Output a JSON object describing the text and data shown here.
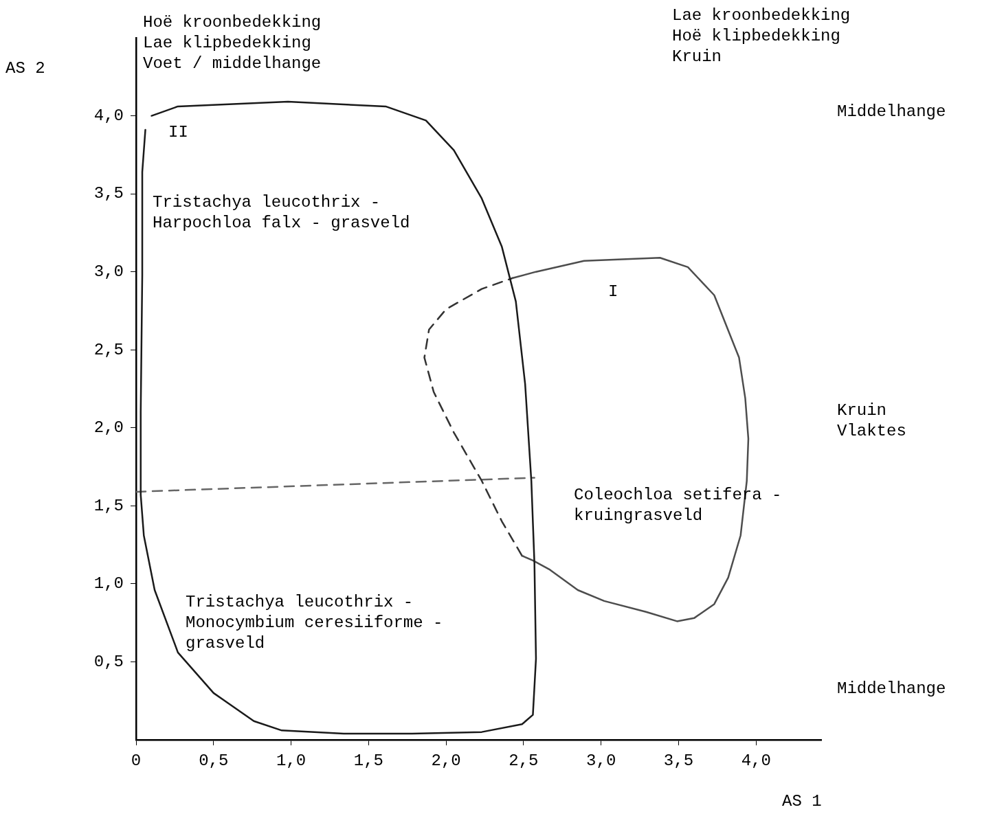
{
  "chart_data": {
    "type": "line",
    "xlabel": "AS 1",
    "ylabel": "AS 2",
    "xlim": [
      0,
      4.42
    ],
    "ylim": [
      0,
      4.5
    ],
    "xticks": [
      0,
      {
        "value": 0.5,
        "label": "0,5"
      },
      {
        "value": 1,
        "label": "1,0"
      },
      {
        "value": 1.5,
        "label": "1,5"
      },
      {
        "value": 2,
        "label": "2,0"
      },
      {
        "value": 2.5,
        "label": "2,5"
      },
      {
        "value": 3,
        "label": "3,0"
      },
      {
        "value": 3.5,
        "label": "3,5"
      },
      {
        "value": 4,
        "label": "4,0"
      }
    ],
    "yticks": [
      {
        "value": 0.5,
        "label": "0,5"
      },
      {
        "value": 1,
        "label": "1,0"
      },
      {
        "value": 1.5,
        "label": "1,5"
      },
      {
        "value": 2,
        "label": "2,0"
      },
      {
        "value": 2.5,
        "label": "2,5"
      },
      {
        "value": 3,
        "label": "3,0"
      },
      {
        "value": 3.5,
        "label": "3,5"
      },
      {
        "value": 4,
        "label": "4,0"
      }
    ],
    "grid": false,
    "legend": false,
    "marker": "none",
    "series": [
      {
        "color": "#1a1a1a",
        "line_style": "solid",
        "x": [
          0.1,
          0.27,
          0.98,
          1.61,
          1.87,
          2.05,
          2.23,
          2.36,
          2.45,
          2.51,
          2.55,
          2.57,
          2.58,
          2.56,
          2.49,
          2.23,
          1.78,
          1.34,
          0.94,
          0.76,
          0.5,
          0.27,
          0.12,
          0.05,
          0.03,
          0.03,
          0.04,
          0.04,
          0.06
        ],
        "values": [
          4.0,
          4.06,
          4.09,
          4.06,
          3.97,
          3.78,
          3.47,
          3.16,
          2.81,
          2.28,
          1.66,
          1.13,
          0.52,
          0.16,
          0.1,
          0.05,
          0.04,
          0.04,
          0.06,
          0.12,
          0.3,
          0.56,
          0.96,
          1.31,
          1.57,
          2.1,
          2.98,
          3.64,
          3.91
        ]
      },
      {
        "color": "#4d4d4d",
        "line_style": "solid",
        "x": [
          2.43,
          2.58,
          2.89,
          3.38,
          3.56,
          3.73,
          3.89,
          3.93,
          3.95,
          3.94,
          3.9,
          3.82,
          3.73,
          3.6,
          3.49,
          3.29,
          3.02,
          2.85,
          2.67,
          2.56,
          2.49
        ],
        "values": [
          2.96,
          3.0,
          3.07,
          3.09,
          3.03,
          2.85,
          2.45,
          2.19,
          1.93,
          1.66,
          1.31,
          1.04,
          0.87,
          0.78,
          0.76,
          0.82,
          0.89,
          0.96,
          1.09,
          1.15,
          1.18
        ]
      },
      {
        "color": "#333333",
        "line_style": "dashed",
        "x": [
          2.49,
          2.36,
          2.23,
          2.05,
          1.92,
          1.86,
          1.89,
          2.0,
          2.23,
          2.43
        ],
        "values": [
          1.18,
          1.4,
          1.66,
          1.97,
          2.23,
          2.45,
          2.63,
          2.76,
          2.89,
          2.96
        ]
      },
      {
        "color": "#666666",
        "line_style": "dashed",
        "x": [
          0,
          2.57
        ],
        "values": [
          1.59,
          1.68
        ]
      }
    ],
    "annotations": [
      "Hoë kroonbedekking\nLae klipbedekking\nVoet / middelhange",
      "Lae kroonbedekking\nHoë klipbedekking\nKruin",
      "Middelhange",
      "Kruin\nVlaktes",
      "Middelhange",
      "II",
      "I",
      "Tristachya leucothrix -\nHarpochloa falx - grasveld",
      "Coleochloa setifera -\nkruingrasveld",
      "Tristachya leucothrix -\nMonocymbium ceresiiforme -\ngrasveld"
    ]
  }
}
